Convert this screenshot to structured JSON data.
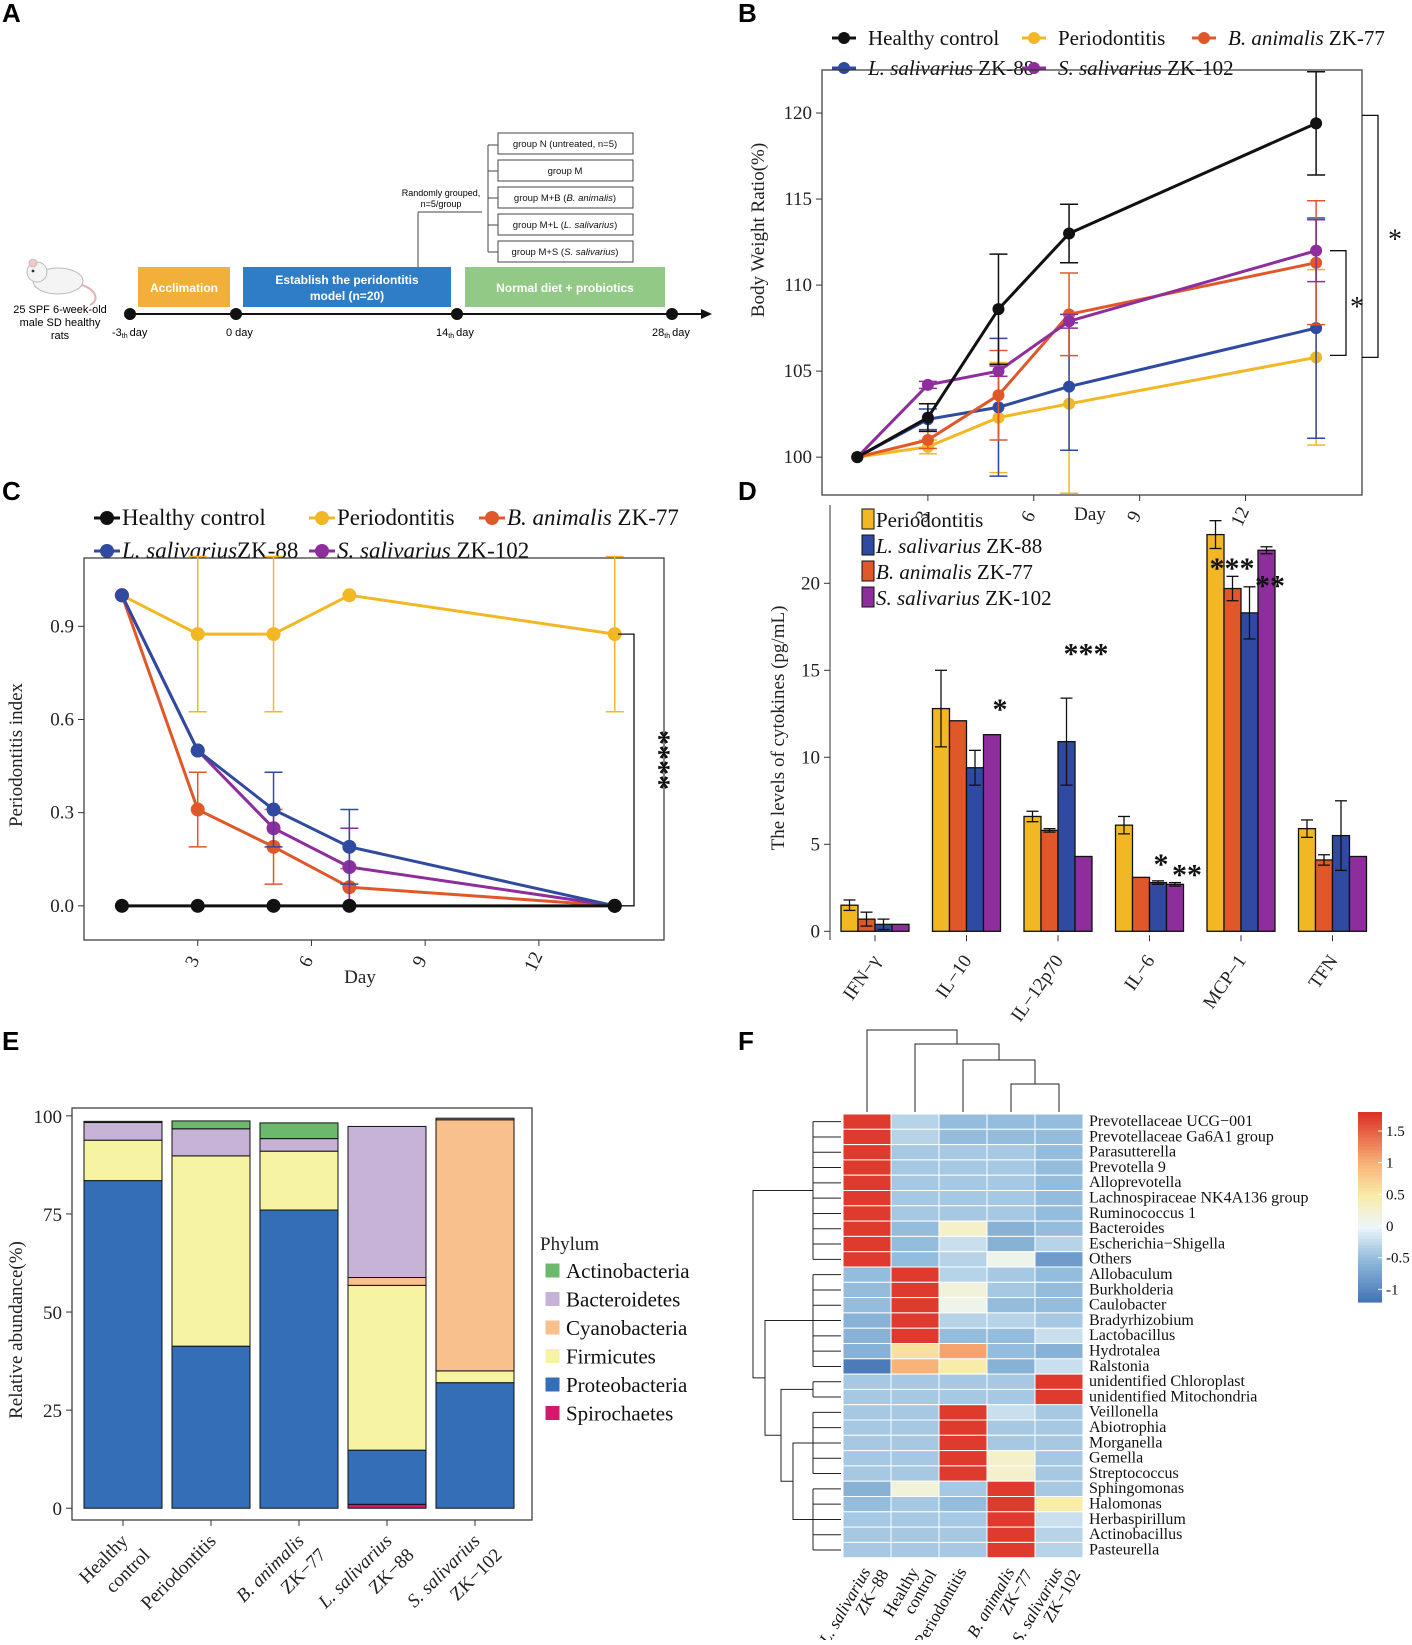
{
  "colors": {
    "healthy": "#111111",
    "periodontitis": "#F2B824",
    "b_animalis": "#E0582A",
    "l_salivarius": "#2F4AA0",
    "s_salivarius": "#8E2E9C",
    "actinobacteria": "#6AB96D",
    "bacteroidetes": "#C7B2D8",
    "cyanobacteria": "#F8C08C",
    "firmicutes": "#F6F4A2",
    "proteobacteria": "#346EB6",
    "spirochaetes": "#D5186D"
  },
  "panelA": {
    "label": "A",
    "rat_text": [
      "25 SPF 6-week-old",
      "male SD healthy",
      "rats"
    ],
    "phases": [
      "Acclimation",
      "Establish the peridontitis",
      "model (n=20)",
      "Normal diet + probiotics"
    ],
    "days": [
      "-3",
      "th",
      "day",
      "0 day",
      "14",
      "th",
      "day",
      "28",
      "th",
      "day"
    ],
    "random_note": [
      "Randomly grouped,",
      "n=5/group"
    ],
    "groups": [
      {
        "pre": "group N (untreated, n=5)",
        "ital": "",
        "post": ""
      },
      {
        "pre": "group M",
        "ital": "",
        "post": ""
      },
      {
        "pre": "group M+B (",
        "ital": "B. animalis",
        "post": ")"
      },
      {
        "pre": "group M+L (",
        "ital": "L. salivarius",
        "post": ")"
      },
      {
        "pre": "group M+S (",
        "ital": "S. salivarius",
        "post": ")"
      }
    ]
  },
  "chart_data": [
    {
      "panel": "B",
      "type": "line",
      "ylabel": "Body Weight Ratio(%)",
      "xlabel": "Day",
      "x": [
        1,
        3,
        5,
        7,
        14
      ],
      "xlim": [
        0,
        15.3
      ],
      "ylim": [
        97.8,
        122.5
      ],
      "xticks": [
        3,
        6,
        9,
        12
      ],
      "yticks": [
        100,
        105,
        110,
        115,
        120
      ],
      "legend": [
        {
          "ital": "",
          "text": "Healthy control",
          "key": "healthy"
        },
        {
          "ital": "",
          "text": "Periodontitis",
          "key": "periodontitis"
        },
        {
          "ital": "B. animalis",
          "text": " ZK-77",
          "key": "b_animalis"
        },
        {
          "ital": "L. salivarius",
          "text": " ZK-88",
          "key": "l_salivarius"
        },
        {
          "ital": "S. salivarius",
          "text": " ZK-102",
          "key": "s_salivarius"
        }
      ],
      "series": [
        {
          "key": "periodontitis",
          "values": [
            100,
            100.6,
            102.3,
            103.1,
            105.8
          ],
          "err": [
            0,
            0.4,
            3.2,
            5.2,
            5.1
          ]
        },
        {
          "key": "l_salivarius",
          "values": [
            100,
            102.2,
            102.9,
            104.1,
            107.5
          ],
          "err": [
            0,
            0.6,
            4.0,
            3.7,
            6.4
          ]
        },
        {
          "key": "b_animalis",
          "values": [
            100,
            101.0,
            103.6,
            108.3,
            111.3
          ],
          "err": [
            0,
            0.5,
            2.6,
            2.4,
            3.6
          ]
        },
        {
          "key": "s_salivarius",
          "values": [
            100,
            104.2,
            105.0,
            107.9,
            112.0
          ],
          "err": [
            0,
            0.2,
            0.3,
            0.4,
            1.8
          ]
        },
        {
          "key": "healthy",
          "values": [
            100,
            102.3,
            108.6,
            113.0,
            119.4
          ],
          "err": [
            0,
            0.8,
            3.2,
            1.7,
            3.0
          ]
        }
      ],
      "significance": [
        "*",
        "*"
      ]
    },
    {
      "panel": "C",
      "type": "line",
      "ylabel": "Periodontitis index",
      "xlabel": "Day",
      "x": [
        1,
        3,
        5,
        7,
        14
      ],
      "xlim": [
        0,
        15.3
      ],
      "ylim": [
        -0.11,
        1.12
      ],
      "xticks": [
        3,
        6,
        9,
        12
      ],
      "yticks": [
        0.0,
        0.3,
        0.6,
        0.9
      ],
      "ytick_labels": [
        "0.0",
        "0.3",
        "0.6",
        "0.9"
      ],
      "legend": [
        {
          "ital": "",
          "text": "Healthy control",
          "key": "healthy"
        },
        {
          "ital": "",
          "text": "Periodontitis",
          "key": "periodontitis"
        },
        {
          "ital": "B. animalis",
          "text": " ZK-77",
          "key": "b_animalis"
        },
        {
          "ital": "L. salivarius",
          "text": "ZK-88",
          "key": "l_salivarius"
        },
        {
          "ital": "S. salivarius",
          "text": " ZK-102",
          "key": "s_salivarius"
        }
      ],
      "series": [
        {
          "key": "periodontitis",
          "values": [
            1.0,
            0.875,
            0.875,
            1.0,
            0.875
          ],
          "err": [
            0,
            0.25,
            0.25,
            0,
            0.25
          ]
        },
        {
          "key": "b_animalis",
          "values": [
            1.0,
            0.31,
            0.19,
            0.06,
            0.0
          ],
          "err": [
            0,
            0.12,
            0.12,
            0.06,
            0
          ]
        },
        {
          "key": "s_salivarius",
          "values": [
            1.0,
            0.5,
            0.25,
            0.125,
            0.0
          ],
          "err": [
            0,
            0,
            0,
            0.125,
            0
          ]
        },
        {
          "key": "l_salivarius",
          "values": [
            1.0,
            0.5,
            0.31,
            0.19,
            0.0
          ],
          "err": [
            0,
            0,
            0.12,
            0.12,
            0
          ]
        },
        {
          "key": "healthy",
          "values": [
            0,
            0,
            0,
            0,
            0
          ],
          "err": [
            0,
            0,
            0,
            0,
            0
          ]
        }
      ],
      "significance": "****"
    },
    {
      "panel": "D",
      "type": "bar",
      "ylabel": "The levels of cytokines (pg/mL)",
      "categories": [
        "IFN−γ",
        "IL−10",
        "IL−12p70",
        "IL−6",
        "MCP−1",
        "TFN"
      ],
      "ylim": [
        -0.5,
        24.5
      ],
      "yticks": [
        0,
        5,
        10,
        15,
        20
      ],
      "legend": [
        {
          "ital": "",
          "text": "Periodontitis",
          "key": "periodontitis"
        },
        {
          "ital": "L. salivarius",
          "text": " ZK-88",
          "key": "l_salivarius"
        },
        {
          "ital": "B. animalis",
          "text": " ZK-77",
          "key": "b_animalis"
        },
        {
          "ital": "S. salivarius",
          "text": " ZK-102",
          "key": "s_salivarius"
        }
      ],
      "series": [
        {
          "key": "periodontitis",
          "values": [
            1.5,
            12.8,
            6.6,
            6.1,
            22.8,
            5.9
          ],
          "err": [
            0.3,
            2.2,
            0.3,
            0.5,
            0.8,
            0.5
          ]
        },
        {
          "key": "b_animalis",
          "values": [
            0.7,
            12.1,
            5.8,
            3.1,
            19.7,
            4.1
          ],
          "err": [
            0.4,
            0,
            0.1,
            0,
            0.7,
            0.3
          ]
        },
        {
          "key": "l_salivarius",
          "values": [
            0.4,
            9.4,
            10.9,
            2.8,
            18.3,
            5.5
          ],
          "err": [
            0.3,
            1.0,
            2.5,
            0.1,
            1.5,
            2.0
          ]
        },
        {
          "key": "s_salivarius",
          "values": [
            0.4,
            11.3,
            4.3,
            2.7,
            21.9,
            4.3
          ],
          "err": [
            0,
            0,
            0,
            0.1,
            0.2,
            0
          ]
        }
      ],
      "significance": [
        "*",
        "***",
        "*",
        "**",
        "***",
        "**"
      ]
    },
    {
      "panel": "E",
      "type": "bar",
      "stacked": true,
      "ylabel": "Relative abundance(%)",
      "legend_title": "Phylum",
      "categories": [
        {
          "l1": "Healthy",
          "l2": "control",
          "ital": false
        },
        {
          "l1": "Periodontitis",
          "l2": "",
          "ital": false
        },
        {
          "l1": "B. animalis",
          "l2": "ZK−77",
          "ital": true
        },
        {
          "l1": "L. salivarius",
          "l2": "ZK−88",
          "ital": true
        },
        {
          "l1": "S. salivarius",
          "l2": "ZK−102",
          "ital": true
        }
      ],
      "ylim": [
        -3,
        102
      ],
      "yticks": [
        0,
        25,
        50,
        75,
        100
      ],
      "series": [
        {
          "name": "Spirochaetes",
          "key": "spirochaetes",
          "values": [
            0,
            0,
            0,
            1.0,
            0
          ]
        },
        {
          "name": "Proteobacteria",
          "key": "proteobacteria",
          "values": [
            83.5,
            41.3,
            76.0,
            13.8,
            32.0
          ]
        },
        {
          "name": "Firmicutes",
          "key": "firmicutes",
          "values": [
            10.3,
            48.5,
            15.0,
            42.0,
            3.0
          ]
        },
        {
          "name": "Cyanobacteria",
          "key": "cyanobacteria",
          "values": [
            0,
            0,
            0,
            2.0,
            64.0
          ]
        },
        {
          "name": "Bacteroidetes",
          "key": "bacteroidetes",
          "values": [
            4.5,
            6.9,
            3.2,
            38.5,
            0.4
          ]
        },
        {
          "name": "Actinobacteria",
          "key": "actinobacteria",
          "values": [
            0.3,
            2.0,
            4.0,
            0,
            0
          ]
        }
      ]
    },
    {
      "panel": "F",
      "type": "heatmap",
      "columns": [
        {
          "l1": "L. salivarius",
          "l2": "ZK−88",
          "ital": true
        },
        {
          "l1": "Healthy",
          "l2": "control",
          "ital": false
        },
        {
          "l1": "Periodontitis",
          "l2": "",
          "ital": false
        },
        {
          "l1": "B. animalis",
          "l2": "ZK−77",
          "ital": true
        },
        {
          "l1": "S. salivarius",
          "l2": "ZK−102",
          "ital": true
        }
      ],
      "rows": [
        "Prevotellaceae UCG−001",
        "Prevotellaceae Ga6A1 group",
        "Parasutterella",
        "Prevotella 9",
        "Alloprevotella",
        "Lachnospiraceae NK4A136 group",
        "Ruminococcus 1",
        "Bacteroides",
        "Escherichia−Shigella",
        "Others",
        "Allobaculum",
        "Burkholderia",
        "Caulobacter",
        "Bradyrhizobium",
        "Lactobacillus",
        "Hydrotalea",
        "Ralstonia",
        "unidentified Chloroplast",
        "unidentified Mitochondria",
        "Veillonella",
        "Abiotrophia",
        "Morganella",
        "Gemella",
        "Streptococcus",
        "Sphingomonas",
        "Halomonas",
        "Herbaspirillum",
        "Actinobacillus",
        "Pasteurella"
      ],
      "values": [
        [
          1.75,
          -0.3,
          -0.5,
          -0.5,
          -0.5
        ],
        [
          1.75,
          -0.3,
          -0.5,
          -0.5,
          -0.5
        ],
        [
          1.75,
          -0.4,
          -0.4,
          -0.4,
          -0.5
        ],
        [
          1.75,
          -0.4,
          -0.4,
          -0.4,
          -0.5
        ],
        [
          1.75,
          -0.4,
          -0.4,
          -0.4,
          -0.5
        ],
        [
          1.75,
          -0.4,
          -0.4,
          -0.4,
          -0.5
        ],
        [
          1.75,
          -0.4,
          -0.4,
          -0.4,
          -0.5
        ],
        [
          1.75,
          -0.5,
          0.3,
          -0.6,
          -0.5
        ],
        [
          1.75,
          -0.5,
          -0.2,
          -0.6,
          -0.3
        ],
        [
          1.75,
          -0.5,
          -0.3,
          0.1,
          -0.8
        ],
        [
          -0.5,
          1.75,
          -0.3,
          -0.4,
          -0.5
        ],
        [
          -0.5,
          1.75,
          0.2,
          -0.4,
          -0.5
        ],
        [
          -0.5,
          1.75,
          0.1,
          -0.5,
          -0.5
        ],
        [
          -0.6,
          1.75,
          -0.3,
          -0.3,
          -0.4
        ],
        [
          -0.6,
          1.75,
          -0.5,
          -0.5,
          -0.2
        ],
        [
          -0.6,
          0.6,
          1.1,
          -0.5,
          -0.6
        ],
        [
          -1.1,
          1.0,
          0.5,
          -0.6,
          -0.2
        ],
        [
          -0.4,
          -0.4,
          -0.4,
          -0.4,
          1.75
        ],
        [
          -0.4,
          -0.4,
          -0.4,
          -0.4,
          1.75
        ],
        [
          -0.4,
          -0.4,
          1.75,
          -0.2,
          -0.4
        ],
        [
          -0.4,
          -0.4,
          1.75,
          -0.4,
          -0.4
        ],
        [
          -0.4,
          -0.4,
          1.75,
          -0.4,
          -0.4
        ],
        [
          -0.4,
          -0.4,
          1.75,
          0.3,
          -0.4
        ],
        [
          -0.4,
          -0.4,
          1.75,
          0.3,
          -0.4
        ],
        [
          -0.6,
          0.2,
          -0.4,
          1.75,
          -0.4
        ],
        [
          -0.5,
          -0.4,
          -0.5,
          1.75,
          0.5
        ],
        [
          -0.4,
          -0.4,
          -0.4,
          1.75,
          -0.2
        ],
        [
          -0.4,
          -0.4,
          -0.4,
          1.75,
          -0.3
        ],
        [
          -0.4,
          -0.4,
          -0.4,
          1.75,
          -0.3
        ]
      ],
      "colorbar": {
        "ticks": [
          1.5,
          1,
          0.5,
          0,
          -0.5,
          -1
        ],
        "labels": [
          "1.5",
          "1",
          "0.5",
          "0",
          "-0.5",
          "-1"
        ],
        "min": -1.2,
        "max": 1.8
      }
    }
  ]
}
